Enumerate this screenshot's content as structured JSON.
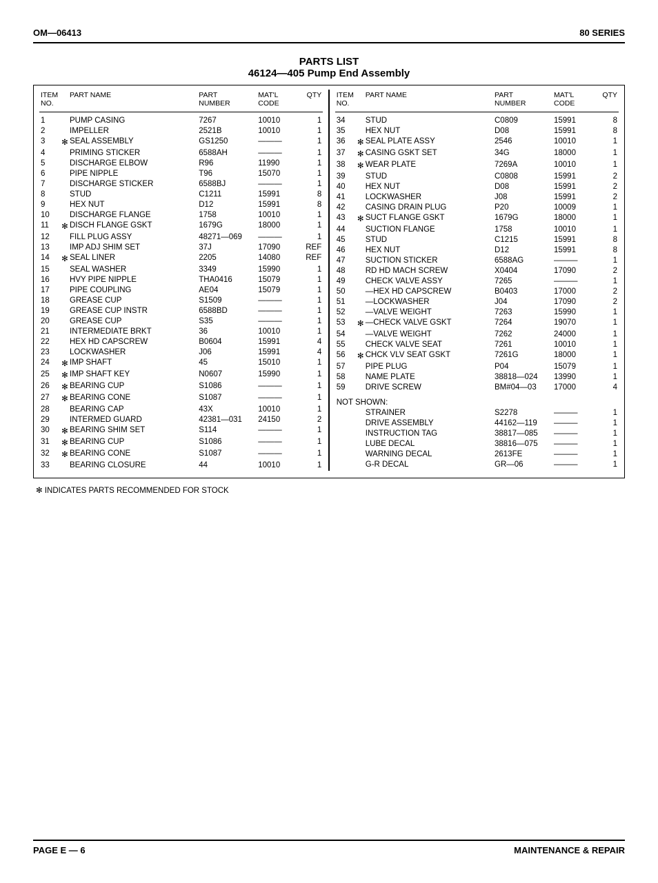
{
  "header": {
    "left": "OM—06413",
    "right": "80 SERIES"
  },
  "titles": {
    "main": "PARTS LIST",
    "sub": "46124—405 Pump End Assembly"
  },
  "columns": {
    "itemno": "ITEM\nNO.",
    "partname": "PART NAME",
    "partnumber": "PART\nNUMBER",
    "matl": "MAT'L\nCODE",
    "qty": "QTY"
  },
  "dash": "———",
  "star": "✻",
  "left_rows": [
    {
      "no": "1",
      "star": false,
      "name": "PUMP CASING",
      "pn": "7267",
      "mtl": "10010",
      "qty": "1"
    },
    {
      "no": "2",
      "star": false,
      "name": "IMPELLER",
      "pn": "2521B",
      "mtl": "10010",
      "qty": "1"
    },
    {
      "no": "3",
      "star": true,
      "name": "SEAL ASSEMBLY",
      "pn": "GS1250",
      "mtl": "———",
      "qty": "1"
    },
    {
      "no": "4",
      "star": false,
      "name": "PRIMING STICKER",
      "pn": "6588AH",
      "mtl": "———",
      "qty": "1"
    },
    {
      "no": "5",
      "star": false,
      "name": "DISCHARGE ELBOW",
      "pn": "R96",
      "mtl": "11990",
      "qty": "1"
    },
    {
      "no": "6",
      "star": false,
      "name": "PIPE NIPPLE",
      "pn": "T96",
      "mtl": "15070",
      "qty": "1"
    },
    {
      "no": "7",
      "star": false,
      "name": "DISCHARGE STICKER",
      "pn": "6588BJ",
      "mtl": "———",
      "qty": "1"
    },
    {
      "no": "8",
      "star": false,
      "name": "STUD",
      "pn": "C1211",
      "mtl": "15991",
      "qty": "8"
    },
    {
      "no": "9",
      "star": false,
      "name": "HEX NUT",
      "pn": "D12",
      "mtl": "15991",
      "qty": "8"
    },
    {
      "no": "10",
      "star": false,
      "name": "DISCHARGE FLANGE",
      "pn": "1758",
      "mtl": "10010",
      "qty": "1"
    },
    {
      "no": "11",
      "star": true,
      "name": "DISCH FLANGE GSKT",
      "pn": "1679G",
      "mtl": "18000",
      "qty": "1"
    },
    {
      "no": "12",
      "star": false,
      "name": "FILL PLUG ASSY",
      "pn": "48271—069",
      "mtl": "———",
      "qty": "1"
    },
    {
      "no": "13",
      "star": false,
      "name": "IMP ADJ SHIM SET",
      "pn": "37J",
      "mtl": "17090",
      "qty": "REF"
    },
    {
      "no": "14",
      "star": true,
      "name": "SEAL LINER",
      "pn": "2205",
      "mtl": "14080",
      "qty": "REF"
    },
    {
      "no": "15",
      "star": false,
      "name": "SEAL WASHER",
      "pn": "3349",
      "mtl": "15990",
      "qty": "1"
    },
    {
      "no": "16",
      "star": false,
      "name": "HVY PIPE NIPPLE",
      "pn": "THA0416",
      "mtl": "15079",
      "qty": "1"
    },
    {
      "no": "17",
      "star": false,
      "name": "PIPE COUPLING",
      "pn": "AE04",
      "mtl": "15079",
      "qty": "1"
    },
    {
      "no": "18",
      "star": false,
      "name": "GREASE CUP",
      "pn": "S1509",
      "mtl": "———",
      "qty": "1"
    },
    {
      "no": "19",
      "star": false,
      "name": "GREASE CUP INSTR",
      "pn": "6588BD",
      "mtl": "———",
      "qty": "1"
    },
    {
      "no": "20",
      "star": false,
      "name": "GREASE CUP",
      "pn": "S35",
      "mtl": "———",
      "qty": "1"
    },
    {
      "no": "21",
      "star": false,
      "name": "INTERMEDIATE BRKT",
      "pn": "36",
      "mtl": "10010",
      "qty": "1"
    },
    {
      "no": "22",
      "star": false,
      "name": "HEX HD CAPSCREW",
      "pn": "B0604",
      "mtl": "15991",
      "qty": "4"
    },
    {
      "no": "23",
      "star": false,
      "name": "LOCKWASHER",
      "pn": "J06",
      "mtl": "15991",
      "qty": "4"
    },
    {
      "no": "24",
      "star": true,
      "name": "IMP SHAFT",
      "pn": "45",
      "mtl": "15010",
      "qty": "1"
    },
    {
      "no": "25",
      "star": true,
      "name": "IMP SHAFT KEY",
      "pn": "N0607",
      "mtl": "15990",
      "qty": "1"
    },
    {
      "no": "26",
      "star": true,
      "name": "BEARING CUP",
      "pn": "S1086",
      "mtl": "———",
      "qty": "1"
    },
    {
      "no": "27",
      "star": true,
      "name": "BEARING CONE",
      "pn": "S1087",
      "mtl": "———",
      "qty": "1"
    },
    {
      "no": "28",
      "star": false,
      "name": "BEARING CAP",
      "pn": "43X",
      "mtl": "10010",
      "qty": "1"
    },
    {
      "no": "29",
      "star": false,
      "name": "INTERMED GUARD",
      "pn": "42381—031",
      "mtl": "24150",
      "qty": "2"
    },
    {
      "no": "30",
      "star": true,
      "name": "BEARING SHIM SET",
      "pn": "S114",
      "mtl": "———",
      "qty": "1"
    },
    {
      "no": "31",
      "star": true,
      "name": "BEARING CUP",
      "pn": "S1086",
      "mtl": "———",
      "qty": "1"
    },
    {
      "no": "32",
      "star": true,
      "name": "BEARING CONE",
      "pn": "S1087",
      "mtl": "———",
      "qty": "1"
    },
    {
      "no": "33",
      "star": false,
      "name": "BEARING CLOSURE",
      "pn": "44",
      "mtl": "10010",
      "qty": "1"
    }
  ],
  "right_rows": [
    {
      "no": "34",
      "star": false,
      "name": "STUD",
      "pn": "C0809",
      "mtl": "15991",
      "qty": "8"
    },
    {
      "no": "35",
      "star": false,
      "name": "HEX NUT",
      "pn": "D08",
      "mtl": "15991",
      "qty": "8"
    },
    {
      "no": "36",
      "star": true,
      "name": "SEAL PLATE ASSY",
      "pn": "2546",
      "mtl": "10010",
      "qty": "1"
    },
    {
      "no": "37",
      "star": true,
      "name": "CASING GSKT SET",
      "pn": "34G",
      "mtl": "18000",
      "qty": "1"
    },
    {
      "no": "38",
      "star": true,
      "name": "WEAR PLATE",
      "pn": "7269A",
      "mtl": "10010",
      "qty": "1"
    },
    {
      "no": "39",
      "star": false,
      "name": "STUD",
      "pn": "C0808",
      "mtl": "15991",
      "qty": "2"
    },
    {
      "no": "40",
      "star": false,
      "name": "HEX NUT",
      "pn": "D08",
      "mtl": "15991",
      "qty": "2"
    },
    {
      "no": "41",
      "star": false,
      "name": "LOCKWASHER",
      "pn": "J08",
      "mtl": "15991",
      "qty": "2"
    },
    {
      "no": "42",
      "star": false,
      "name": "CASING DRAIN PLUG",
      "pn": "P20",
      "mtl": "10009",
      "qty": "1"
    },
    {
      "no": "43",
      "star": true,
      "name": "SUCT FLANGE GSKT",
      "pn": "1679G",
      "mtl": "18000",
      "qty": "1"
    },
    {
      "no": "44",
      "star": false,
      "name": "SUCTION FLANGE",
      "pn": "1758",
      "mtl": "10010",
      "qty": "1"
    },
    {
      "no": "45",
      "star": false,
      "name": "STUD",
      "pn": "C1215",
      "mtl": "15991",
      "qty": "8"
    },
    {
      "no": "46",
      "star": false,
      "name": "HEX NUT",
      "pn": "D12",
      "mtl": "15991",
      "qty": "8"
    },
    {
      "no": "47",
      "star": false,
      "name": "SUCTION STICKER",
      "pn": "6588AG",
      "mtl": "———",
      "qty": "1"
    },
    {
      "no": "48",
      "star": false,
      "name": "RD HD MACH SCREW",
      "pn": "X0404",
      "mtl": "17090",
      "qty": "2"
    },
    {
      "no": "49",
      "star": false,
      "name": "CHECK VALVE ASSY",
      "pn": "7265",
      "mtl": "———",
      "qty": "1"
    },
    {
      "no": "50",
      "star": false,
      "name": "—HEX HD CAPSCREW",
      "pn": "B0403",
      "mtl": "17000",
      "qty": "2"
    },
    {
      "no": "51",
      "star": false,
      "name": "—LOCKWASHER",
      "pn": "J04",
      "mtl": "17090",
      "qty": "2"
    },
    {
      "no": "52",
      "star": false,
      "name": "—VALVE WEIGHT",
      "pn": "7263",
      "mtl": "15990",
      "qty": "1"
    },
    {
      "no": "53",
      "star": true,
      "name": "—CHECK VALVE GSKT",
      "pn": "7264",
      "mtl": "19070",
      "qty": "1"
    },
    {
      "no": "54",
      "star": false,
      "name": "—VALVE WEIGHT",
      "pn": "7262",
      "mtl": "24000",
      "qty": "1"
    },
    {
      "no": "55",
      "star": false,
      "name": "CHECK VALVE SEAT",
      "pn": "7261",
      "mtl": "10010",
      "qty": "1"
    },
    {
      "no": "56",
      "star": true,
      "name": "CHCK VLV SEAT GSKT",
      "pn": "7261G",
      "mtl": "18000",
      "qty": "1"
    },
    {
      "no": "57",
      "star": false,
      "name": "PIPE PLUG",
      "pn": "P04",
      "mtl": "15079",
      "qty": "1"
    },
    {
      "no": "58",
      "star": false,
      "name": "NAME PLATE",
      "pn": "38818—024",
      "mtl": "13990",
      "qty": "1"
    },
    {
      "no": "59",
      "star": false,
      "name": "DRIVE SCREW",
      "pn": "BM#04—03",
      "mtl": "17000",
      "qty": "4"
    }
  ],
  "not_shown_label": "NOT SHOWN:",
  "not_shown_rows": [
    {
      "name": "STRAINER",
      "pn": "S2278",
      "mtl": "———",
      "qty": "1"
    },
    {
      "name": "DRIVE ASSEMBLY",
      "pn": "44162—119",
      "mtl": "———",
      "qty": "1"
    },
    {
      "name": "INSTRUCTION TAG",
      "pn": "38817—085",
      "mtl": "———",
      "qty": "1"
    },
    {
      "name": "LUBE DECAL",
      "pn": "38816—075",
      "mtl": "———",
      "qty": "1"
    },
    {
      "name": "WARNING DECAL",
      "pn": "2613FE",
      "mtl": "———",
      "qty": "1"
    },
    {
      "name": "G-R DECAL",
      "pn": "GR—06",
      "mtl": "———",
      "qty": "1"
    }
  ],
  "footnote": "✻ INDICATES PARTS RECOMMENDED FOR STOCK",
  "footer": {
    "left": "PAGE E — 6",
    "right": "MAINTENANCE & REPAIR"
  }
}
